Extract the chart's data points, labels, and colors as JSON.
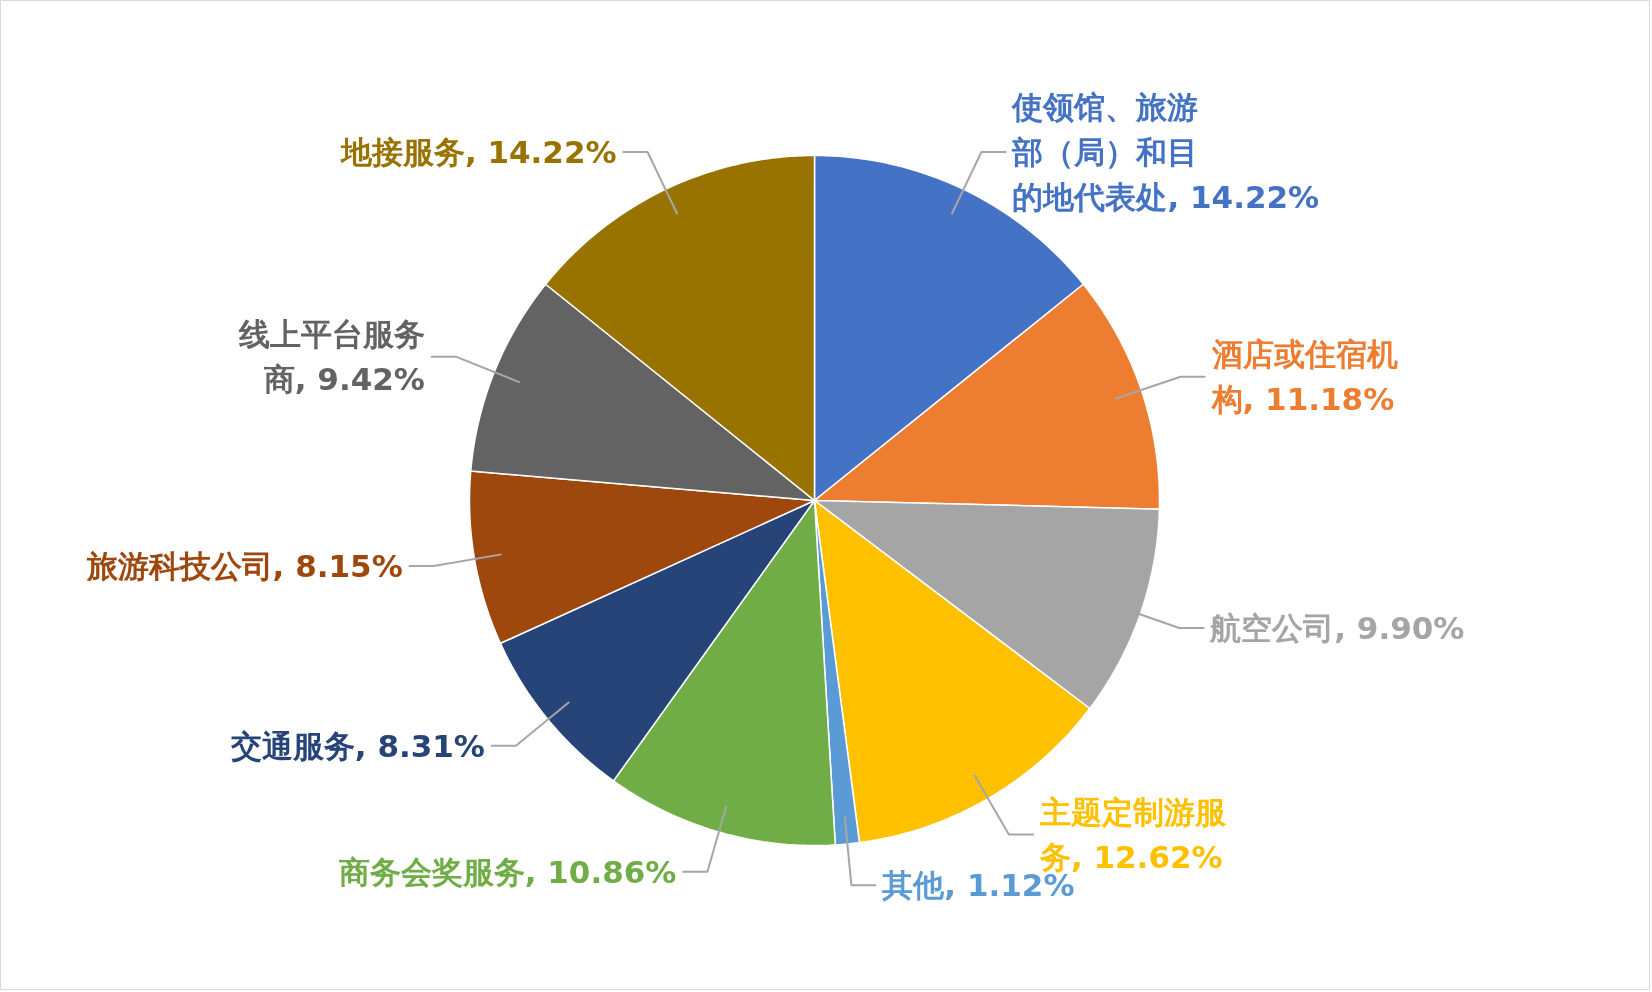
{
  "chart_data": {
    "type": "pie",
    "categories": [
      "使领馆、旅游部（局）和目的地代表处",
      "酒店或住宿机构",
      "航空公司",
      "主题定制游服务",
      "其他",
      "商务会奖服务",
      "交通服务",
      "旅游科技公司",
      "线上平台服务商",
      "地接服务"
    ],
    "values": [
      14.22,
      11.18,
      9.9,
      12.62,
      1.12,
      10.86,
      8.31,
      8.15,
      9.42,
      14.22
    ],
    "value_labels": [
      "14.22%",
      "11.18%",
      "9.90%",
      "12.62%",
      "1.12%",
      "10.86%",
      "8.31%",
      "8.15%",
      "9.42%",
      "14.22%"
    ],
    "colors": [
      "#4472c4",
      "#ed7d31",
      "#a5a5a5",
      "#ffc000",
      "#5b9bd5",
      "#70ad47",
      "#264478",
      "#9e480e",
      "#636363",
      "#997300"
    ]
  }
}
